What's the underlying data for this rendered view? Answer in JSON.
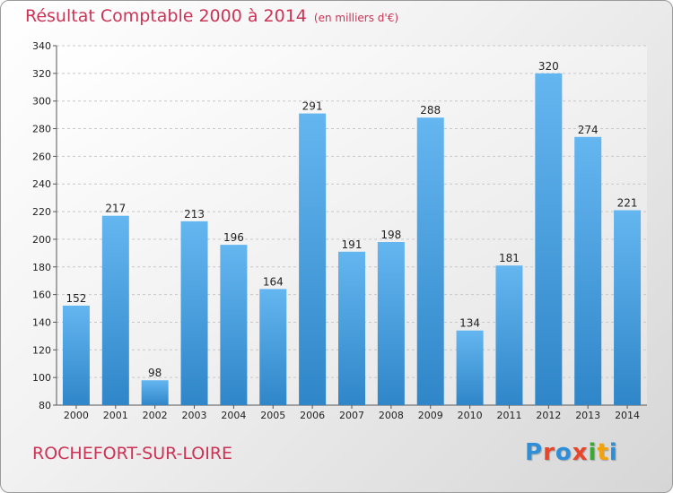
{
  "title": "Résultat Comptable 2000 à 2014",
  "unit_note": "(en milliers d'€)",
  "town": "ROCHEFORT-SUR-LOIRE",
  "logo": {
    "letters": [
      "P",
      "r",
      "o",
      "x",
      "i",
      "t",
      "i"
    ],
    "colors": [
      "#2e8fd8",
      "#e8462a",
      "#2e8fd8",
      "#e8462a",
      "#3aaa35",
      "#f2a20a",
      "#2e8fd8"
    ]
  },
  "colors": {
    "bar_light": "#64b6f0",
    "bar_dark": "#2f86c8",
    "accent": "#cc3355"
  },
  "chart_data": {
    "type": "bar",
    "title": "Résultat Comptable 2000 à 2014",
    "categories": [
      "2000",
      "2001",
      "2002",
      "2003",
      "2004",
      "2005",
      "2006",
      "2007",
      "2008",
      "2009",
      "2010",
      "2011",
      "2012",
      "2013",
      "2014"
    ],
    "values": [
      152,
      217,
      98,
      213,
      196,
      164,
      291,
      191,
      198,
      288,
      134,
      181,
      320,
      274,
      221
    ],
    "ylim": [
      80,
      340
    ],
    "yticks": [
      80,
      100,
      120,
      140,
      160,
      180,
      200,
      220,
      240,
      260,
      280,
      300,
      320,
      340
    ],
    "grid": true
  }
}
